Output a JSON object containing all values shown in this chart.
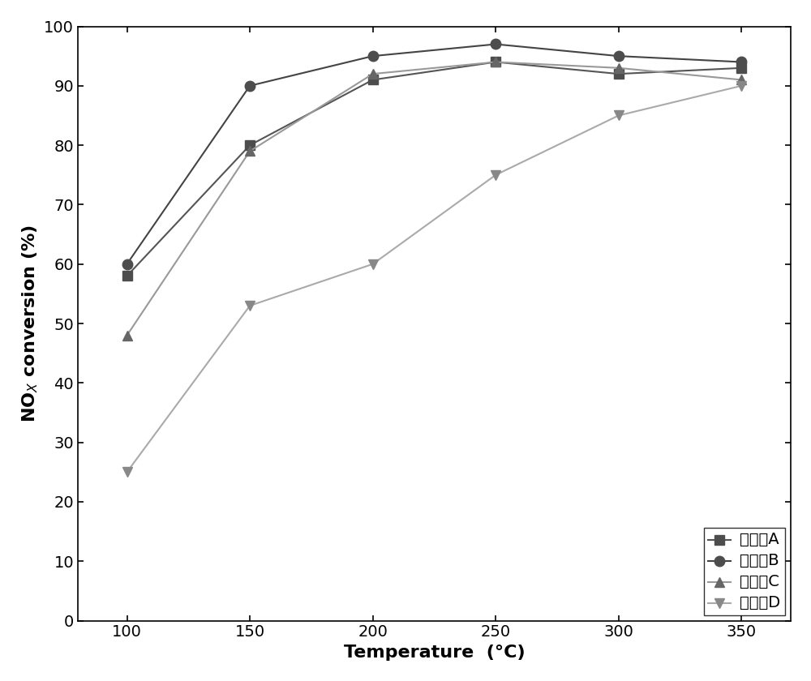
{
  "x": [
    100,
    150,
    200,
    250,
    300,
    350
  ],
  "series_order": [
    "催化劑A",
    "催化劑B",
    "催化劑C",
    "催化劑D"
  ],
  "series": {
    "催化劑A": [
      58,
      80,
      91,
      94,
      92,
      93
    ],
    "催化劑B": [
      60,
      90,
      95,
      97,
      95,
      94
    ],
    "催化劑C": [
      48,
      79,
      92,
      94,
      93,
      91
    ],
    "催化劑D": [
      25,
      53,
      60,
      75,
      85,
      90
    ]
  },
  "markers": {
    "催化劑A": "s",
    "催化劑B": "o",
    "催化劑C": "^",
    "催化劑D": "v"
  },
  "marker_colors": {
    "催化劑A": "#4d4d4d",
    "催化劑B": "#4d4d4d",
    "催化劑C": "#666666",
    "催化劑D": "#888888"
  },
  "line_colors": {
    "催化劑A": "#555555",
    "催化劑B": "#444444",
    "催化劑C": "#999999",
    "催化劑D": "#aaaaaa"
  },
  "xlim": [
    80,
    370
  ],
  "ylim": [
    0,
    100
  ],
  "xticks": [
    100,
    150,
    200,
    250,
    300,
    350
  ],
  "yticks": [
    0,
    10,
    20,
    30,
    40,
    50,
    60,
    70,
    80,
    90,
    100
  ],
  "figsize": [
    10.0,
    8.4
  ],
  "dpi": 100,
  "markersize": 9,
  "linewidth": 1.5,
  "xlabel_fontsize": 16,
  "ylabel_fontsize": 16,
  "tick_fontsize": 14,
  "legend_fontsize": 14
}
